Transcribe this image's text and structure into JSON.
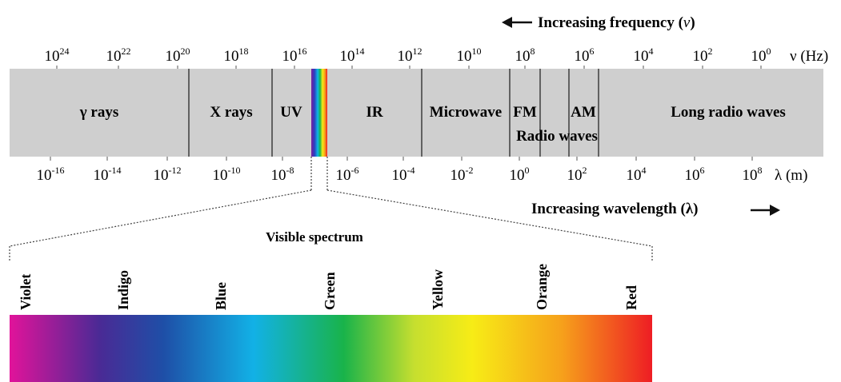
{
  "frequency_heading": {
    "text": "Increasing frequency (",
    "symbol": "ν",
    "close": ")"
  },
  "wavelength_heading": {
    "text": "Increasing wavelength (",
    "symbol": "λ",
    "close": ")"
  },
  "frequency_axis": {
    "unit_label": "ν (Hz)",
    "ticks": [
      {
        "base": "10",
        "exp": "24"
      },
      {
        "base": "10",
        "exp": "22"
      },
      {
        "base": "10",
        "exp": "20"
      },
      {
        "base": "10",
        "exp": "18"
      },
      {
        "base": "10",
        "exp": "16"
      },
      {
        "base": "10",
        "exp": "14"
      },
      {
        "base": "10",
        "exp": "12"
      },
      {
        "base": "10",
        "exp": "10"
      },
      {
        "base": "10",
        "exp": "8"
      },
      {
        "base": "10",
        "exp": "6"
      },
      {
        "base": "10",
        "exp": "4"
      },
      {
        "base": "10",
        "exp": "2"
      },
      {
        "base": "10",
        "exp": "0"
      }
    ]
  },
  "wavelength_axis": {
    "unit_label": "λ (m)",
    "ticks": [
      {
        "base": "10",
        "exp": "-16"
      },
      {
        "base": "10",
        "exp": "-14"
      },
      {
        "base": "10",
        "exp": "-12"
      },
      {
        "base": "10",
        "exp": "-10"
      },
      {
        "base": "10",
        "exp": "-8"
      },
      {
        "base": "10",
        "exp": "-6"
      },
      {
        "base": "10",
        "exp": "-4"
      },
      {
        "base": "10",
        "exp": "-2"
      },
      {
        "base": "10",
        "exp": "0"
      },
      {
        "base": "10",
        "exp": "2"
      },
      {
        "base": "10",
        "exp": "4"
      },
      {
        "base": "10",
        "exp": "6"
      },
      {
        "base": "10",
        "exp": "8"
      }
    ]
  },
  "bands": {
    "gamma": "γ rays",
    "xray": "X rays",
    "uv": "UV",
    "ir": "IR",
    "microwave": "Microwave",
    "fm": "FM",
    "am": "AM",
    "radio": "Radio waves",
    "long_radio": "Long radio waves"
  },
  "visible": {
    "title": "Visible spectrum",
    "colors": [
      "Violet",
      "Indigo",
      "Blue",
      "Green",
      "Yellow",
      "Orange",
      "Red"
    ]
  },
  "colors": {
    "band_fill": "#cfcfcf",
    "divider": "#333333",
    "spectrum_stops": [
      "#e1139a",
      "#3a2d97",
      "#0f63b5",
      "#11b6e8",
      "#19b34a",
      "#8cc63f",
      "#f7ec16",
      "#f6a01b",
      "#ee1d24"
    ]
  }
}
